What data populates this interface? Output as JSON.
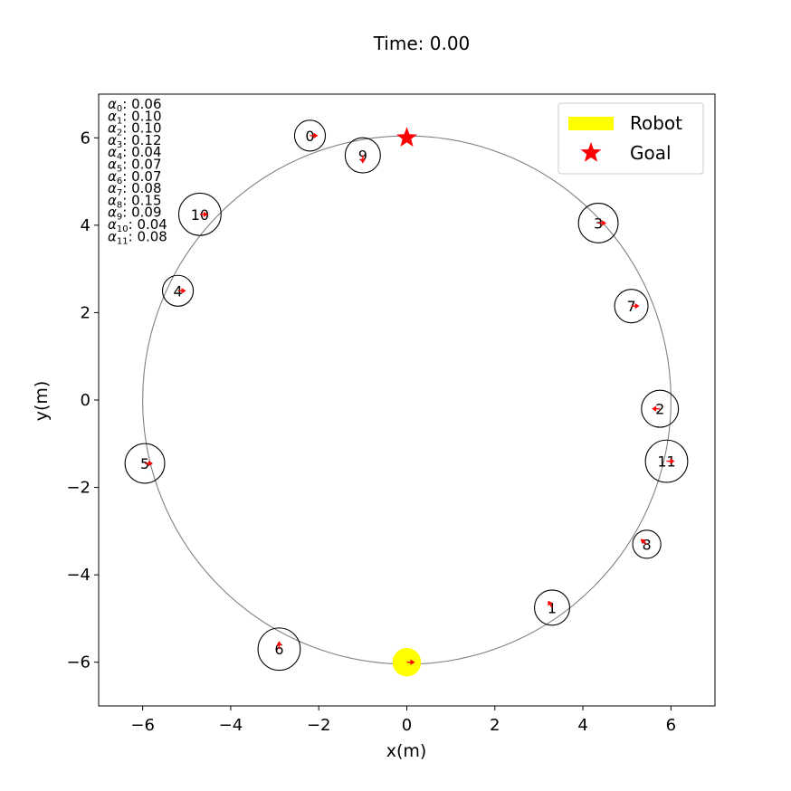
{
  "chart_data": {
    "type": "scatter",
    "title": "Time: 0.00",
    "xlabel": "x(m)",
    "ylabel": "y(m)",
    "xlim": [
      -7,
      7
    ],
    "ylim": [
      -7,
      7
    ],
    "xticks": [
      -6,
      -4,
      -2,
      0,
      2,
      4,
      6
    ],
    "yticks": [
      -6,
      -4,
      -2,
      0,
      2,
      4,
      6
    ],
    "grid": false,
    "legend_position": "top-right",
    "legend": [
      {
        "label": "Robot",
        "color": "#ffff00",
        "marker": "rect"
      },
      {
        "label": "Goal",
        "color": "#ff0000",
        "marker": "star"
      }
    ],
    "path_circle": {
      "cx": 0,
      "cy": 0,
      "r": 6
    },
    "robot": {
      "x": 0,
      "y": -6,
      "r": 0.3,
      "dir": 0
    },
    "goal": {
      "x": 0,
      "y": 6
    },
    "agents": [
      {
        "id": "0",
        "x": -2.2,
        "y": 6.05,
        "r": 0.35,
        "dir": 0
      },
      {
        "id": "1",
        "x": 3.3,
        "y": -4.75,
        "r": 0.4,
        "dir": 120
      },
      {
        "id": "2",
        "x": 5.75,
        "y": -0.2,
        "r": 0.42,
        "dir": 180
      },
      {
        "id": "3",
        "x": 4.35,
        "y": 4.05,
        "r": 0.45,
        "dir": 0
      },
      {
        "id": "4",
        "x": -5.2,
        "y": 2.5,
        "r": 0.35,
        "dir": 0
      },
      {
        "id": "5",
        "x": -5.95,
        "y": -1.45,
        "r": 0.45,
        "dir": 0
      },
      {
        "id": "6",
        "x": -2.9,
        "y": -5.7,
        "r": 0.48,
        "dir": 90
      },
      {
        "id": "7",
        "x": 5.1,
        "y": 2.15,
        "r": 0.38,
        "dir": 0
      },
      {
        "id": "8",
        "x": 5.45,
        "y": -3.3,
        "r": 0.32,
        "dir": 140
      },
      {
        "id": "9",
        "x": -1.0,
        "y": 5.6,
        "r": 0.4,
        "dir": 270
      },
      {
        "id": "10",
        "x": -4.7,
        "y": 4.25,
        "r": 0.48,
        "dir": 0
      },
      {
        "id": "11",
        "x": 5.9,
        "y": -1.4,
        "r": 0.48,
        "dir": 0
      }
    ],
    "alphas": [
      {
        "sub": "0",
        "value": "0.06"
      },
      {
        "sub": "1",
        "value": "0.10"
      },
      {
        "sub": "2",
        "value": "0.10"
      },
      {
        "sub": "3",
        "value": "0.12"
      },
      {
        "sub": "4",
        "value": "0.04"
      },
      {
        "sub": "5",
        "value": "0.07"
      },
      {
        "sub": "6",
        "value": "0.07"
      },
      {
        "sub": "7",
        "value": "0.08"
      },
      {
        "sub": "8",
        "value": "0.15"
      },
      {
        "sub": "9",
        "value": "0.09"
      },
      {
        "sub": "10",
        "value": "0.04"
      },
      {
        "sub": "11",
        "value": "0.08"
      }
    ],
    "colors": {
      "robot": "#ffff00",
      "goal": "#ff0000",
      "arrow": "#ff0000",
      "path": "#808080",
      "agent_edge": "#000000"
    }
  }
}
